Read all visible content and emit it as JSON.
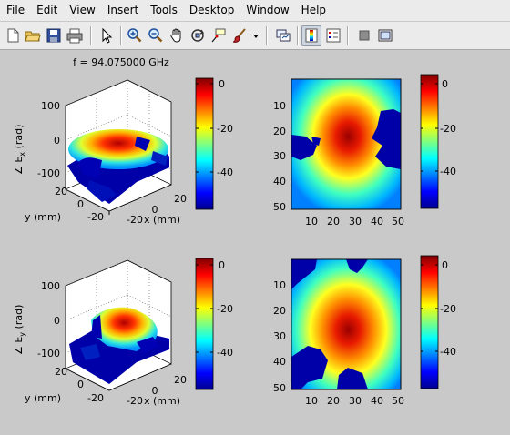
{
  "menu": [
    "File",
    "Edit",
    "View",
    "Insert",
    "Tools",
    "Desktop",
    "Window",
    "Help"
  ],
  "menu_mnemonics": [
    "F",
    "E",
    "V",
    "I",
    "T",
    "D",
    "W",
    "H"
  ],
  "toolbar_icons": [
    "new-file-icon",
    "open-folder-icon",
    "save-icon",
    "print-icon",
    "select-pointer-icon",
    "zoom-in-icon",
    "zoom-out-icon",
    "pan-hand-icon",
    "rotate-3d-icon",
    "data-cursor-icon",
    "brush-icon",
    "brush-dropdown-icon",
    "link-plot-icon",
    "colorbar-icon",
    "legend-icon",
    "hide-plot-tools-icon",
    "show-plot-tools-icon"
  ],
  "figure": {
    "title": "f = 94.075000 GHz",
    "colors": {
      "high": "#a00000",
      "mid": "#ffff00",
      "low": "#00008f"
    },
    "colorbar_ticks": [
      "0",
      "-20",
      "-40"
    ],
    "surface_plots": [
      {
        "zlabel_main": "∠ E",
        "zlabel_sub": "x",
        "zlabel_tail": " (rad)",
        "z_ticks": [
          "100",
          "0",
          "-100"
        ],
        "y_ticks": [
          "20",
          "0",
          "-20"
        ],
        "x_ticks": [
          "-20",
          "0",
          "20"
        ],
        "ylabel": "y (mm)",
        "xlabel": "x (mm)"
      },
      {
        "zlabel_main": "∠ E",
        "zlabel_sub": "y",
        "zlabel_tail": " (rad)",
        "z_ticks": [
          "100",
          "0",
          "-100"
        ],
        "y_ticks": [
          "20",
          "0",
          "-20"
        ],
        "x_ticks": [
          "-20",
          "0",
          "20"
        ],
        "ylabel": "y (mm)",
        "xlabel": "x (mm)"
      }
    ],
    "image_plots": [
      {
        "y_ticks": [
          "10",
          "20",
          "30",
          "40",
          "50"
        ],
        "x_ticks": [
          "10",
          "20",
          "30",
          "40",
          "50"
        ]
      },
      {
        "y_ticks": [
          "10",
          "20",
          "30",
          "40",
          "50"
        ],
        "x_ticks": [
          "10",
          "20",
          "30",
          "40",
          "50"
        ]
      }
    ]
  }
}
